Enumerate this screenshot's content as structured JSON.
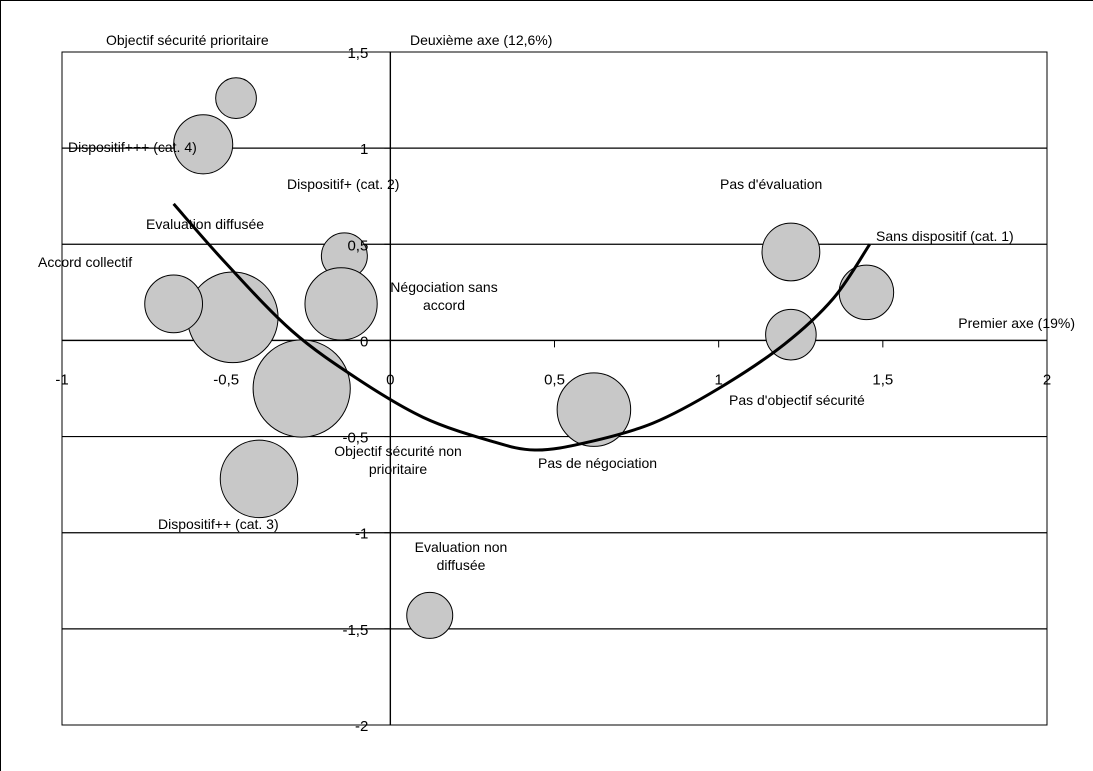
{
  "chart_data": {
    "type": "scatter",
    "title": "",
    "xlabel": "Premier axe (19%)",
    "ylabel": "Deuxième axe (12,6%)",
    "xlim": [
      -1,
      2
    ],
    "ylim": [
      -2,
      1.5
    ],
    "x_ticks": [
      {
        "value": -1,
        "label": "-1"
      },
      {
        "value": -0.5,
        "label": "-0,5"
      },
      {
        "value": 0,
        "label": "0"
      },
      {
        "value": 0.5,
        "label": "0,5"
      },
      {
        "value": 1,
        "label": "1"
      },
      {
        "value": 1.5,
        "label": "1,5"
      },
      {
        "value": 2,
        "label": "2"
      }
    ],
    "y_ticks": [
      {
        "value": 1.5,
        "label": "1,5"
      },
      {
        "value": 1,
        "label": "1"
      },
      {
        "value": 0.5,
        "label": "0,5"
      },
      {
        "value": 0,
        "label": "0"
      },
      {
        "value": -0.5,
        "label": "-0,5"
      },
      {
        "value": -1,
        "label": "-1"
      },
      {
        "value": -1.5,
        "label": "-1,5"
      },
      {
        "value": -2,
        "label": "-2"
      }
    ],
    "grid": "horizontal",
    "bubble_color": "#c8c8c8",
    "points": [
      {
        "label": "Objectif sécurité prioritaire",
        "x": -0.47,
        "y": 1.26,
        "size": 0.062
      },
      {
        "label": "Dispositif+++ (cat. 4)",
        "x": -0.57,
        "y": 1.02,
        "size": 0.09
      },
      {
        "label": "Dispositif+ (cat. 2)",
        "x": -0.14,
        "y": 0.44,
        "size": 0.07
      },
      {
        "label": "Evaluation diffusée",
        "x": -0.48,
        "y": 0.12,
        "size": 0.138
      },
      {
        "label": "Accord collectif",
        "x": -0.66,
        "y": 0.19,
        "size": 0.088
      },
      {
        "label": "Négociation sans accord",
        "x": -0.15,
        "y": 0.19,
        "size": 0.11
      },
      {
        "label": "Objectif sécurité non prioritaire",
        "x": -0.27,
        "y": -0.25,
        "size": 0.148
      },
      {
        "label": "Dispositif++ (cat. 3)",
        "x": -0.4,
        "y": -0.72,
        "size": 0.118
      },
      {
        "label": "Evaluation non diffusée",
        "x": 0.12,
        "y": -1.43,
        "size": 0.07
      },
      {
        "label": "Pas de négociation",
        "x": 0.62,
        "y": -0.36,
        "size": 0.112
      },
      {
        "label": "Pas d'évaluation",
        "x": 1.22,
        "y": 0.46,
        "size": 0.088
      },
      {
        "label": "Sans dispositif (cat. 1)",
        "x": 1.45,
        "y": 0.25,
        "size": 0.083
      },
      {
        "label": "Pas d'objectif sécurité",
        "x": 1.22,
        "y": 0.03,
        "size": 0.077
      }
    ],
    "curve": [
      [
        -0.66,
        0.71
      ],
      [
        -0.5,
        0.4
      ],
      [
        -0.3,
        0.05
      ],
      [
        -0.1,
        -0.2
      ],
      [
        0.1,
        -0.4
      ],
      [
        0.3,
        -0.52
      ],
      [
        0.44,
        -0.57
      ],
      [
        0.6,
        -0.53
      ],
      [
        0.8,
        -0.43
      ],
      [
        1.0,
        -0.25
      ],
      [
        1.2,
        -0.02
      ],
      [
        1.35,
        0.22
      ],
      [
        1.46,
        0.5
      ]
    ]
  },
  "labels": {
    "objectif_prioritaire": "Objectif sécurité prioritaire",
    "deuxieme_axe": "Deuxième axe (12,6%)",
    "dispositif_4": "Dispositif+++ (cat. 4)",
    "dispositif_2": "Dispositif+ (cat. 2)",
    "pas_evaluation": "Pas d'évaluation",
    "evaluation_diffusee": "Evaluation diffusée",
    "sans_dispositif": "Sans dispositif (cat. 1)",
    "accord_collectif": "Accord collectif",
    "negociation_sans_1": "Négociation sans",
    "negociation_sans_2": "accord",
    "premier_axe": "Premier axe (19%)",
    "pas_objectif": "Pas d'objectif sécurité",
    "objectif_non_1": "Objectif sécurité non",
    "objectif_non_2": "prioritaire",
    "pas_negociation": "Pas de négociation",
    "dispositif_3": "Dispositif++ (cat. 3)",
    "evaluation_non_1": "Evaluation non",
    "evaluation_non_2": "diffusée"
  }
}
